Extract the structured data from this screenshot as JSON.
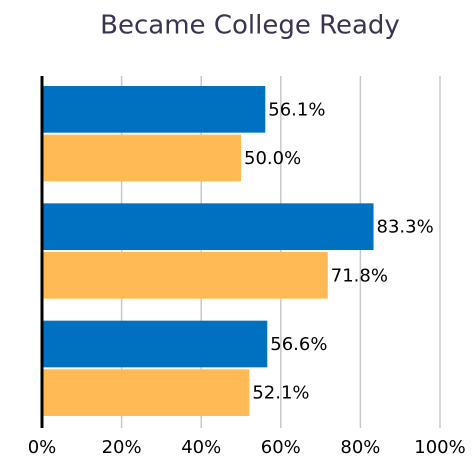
{
  "chart_data": {
    "type": "hbar",
    "title": "Became College Ready",
    "categories": [
      null,
      null,
      null
    ],
    "series": [
      {
        "color": "#0070c0",
        "values": [
          56.1,
          83.3,
          56.6
        ],
        "value_labels": [
          "56.1%",
          "83.3%",
          "56.6%"
        ]
      },
      {
        "color": "#ffb955",
        "values": [
          50.0,
          71.8,
          52.1
        ],
        "value_labels": [
          "50.0%",
          "71.8%",
          "52.1%"
        ]
      }
    ],
    "xlim": [
      0,
      100
    ],
    "xticks": [
      {
        "value": 0,
        "label": "0%"
      },
      {
        "value": 20,
        "label": "20%"
      },
      {
        "value": 40,
        "label": "40%"
      },
      {
        "value": 60,
        "label": "60%"
      },
      {
        "value": 80,
        "label": "80%"
      },
      {
        "value": 100,
        "label": "100%"
      }
    ],
    "grid": true
  }
}
